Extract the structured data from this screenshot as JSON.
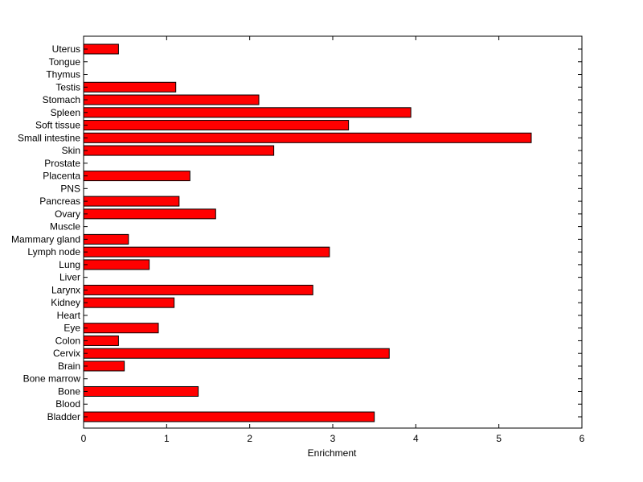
{
  "chart_data": {
    "type": "bar",
    "orientation": "horizontal",
    "categories": [
      "Uterus",
      "Tongue",
      "Thymus",
      "Testis",
      "Stomach",
      "Spleen",
      "Soft tissue",
      "Small intestine",
      "Skin",
      "Prostate",
      "Placenta",
      "PNS",
      "Pancreas",
      "Ovary",
      "Muscle",
      "Mammary gland",
      "Lymph node",
      "Lung",
      "Liver",
      "Larynx",
      "Kidney",
      "Heart",
      "Eye",
      "Colon",
      "Cervix",
      "Brain",
      "Bone marrow",
      "Bone",
      "Blood",
      "Bladder"
    ],
    "values": [
      0.42,
      0,
      0,
      1.11,
      2.11,
      3.94,
      3.19,
      5.39,
      2.29,
      0,
      1.28,
      0,
      1.15,
      1.59,
      0,
      0.54,
      2.96,
      0.79,
      0,
      2.76,
      1.09,
      0,
      0.9,
      0.42,
      3.68,
      0.49,
      0,
      1.38,
      0,
      3.5
    ],
    "xlabel": "Enrichment",
    "ylabel": "",
    "title": "",
    "xlim": [
      0,
      6
    ],
    "xticks": [
      0,
      1,
      2,
      3,
      4,
      5,
      6
    ],
    "xtick_labels": [
      "0",
      "1",
      "2",
      "3",
      "4",
      "5",
      "6"
    ],
    "grid": false,
    "legend": "none",
    "bar_color": "#ff0000",
    "bar_edge_color": "#000000"
  }
}
